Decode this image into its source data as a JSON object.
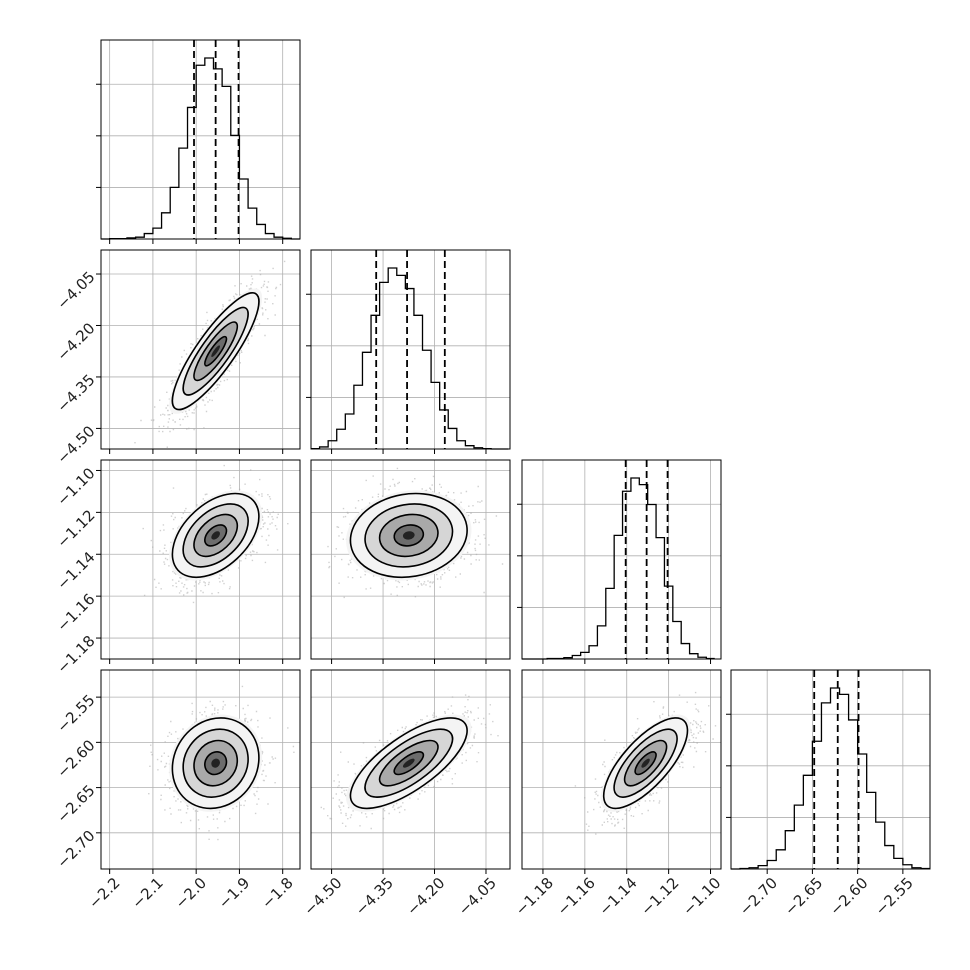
{
  "chart_data": {
    "type": "corner",
    "parameters": [
      {
        "range": [
          -2.22,
          -1.76
        ],
        "ticks": [
          -2.2,
          -2.1,
          -2.0,
          -1.9,
          -1.8
        ],
        "tick_labels": [
          "−2.2",
          "−2.1",
          "−2.0",
          "−1.9",
          "−1.8"
        ],
        "quantiles": [
          -2.005,
          -1.955,
          -1.902
        ],
        "hist_bins": [
          -2.22,
          -2.2,
          -2.18,
          -2.16,
          -2.14,
          -2.12,
          -2.1,
          -2.08,
          -2.06,
          -2.04,
          -2.02,
          -2.0,
          -1.98,
          -1.96,
          -1.94,
          -1.92,
          -1.9,
          -1.88,
          -1.86,
          -1.84,
          -1.82,
          -1.8,
          -1.78,
          -1.76
        ],
        "hist_counts": [
          0,
          1,
          1,
          3,
          5,
          15,
          30,
          72,
          142,
          250,
          362,
          478,
          498,
          468,
          420,
          285,
          165,
          85,
          40,
          15,
          5,
          2,
          0
        ]
      },
      {
        "range": [
          -4.56,
          -3.98
        ],
        "ticks": [
          -4.5,
          -4.35,
          -4.2,
          -4.05
        ],
        "tick_labels": [
          "−4.50",
          "−4.35",
          "−4.20",
          "−4.05"
        ],
        "quantiles": [
          -4.37,
          -4.28,
          -4.17
        ],
        "hist_bins": [
          -4.56,
          -4.535,
          -4.51,
          -4.485,
          -4.46,
          -4.435,
          -4.41,
          -4.385,
          -4.36,
          -4.335,
          -4.31,
          -4.285,
          -4.26,
          -4.235,
          -4.21,
          -4.185,
          -4.16,
          -4.135,
          -4.11,
          -4.085,
          -4.06,
          -4.035,
          -4.01,
          -3.985
        ],
        "hist_counts": [
          1,
          5,
          20,
          48,
          85,
          155,
          235,
          325,
          405,
          440,
          422,
          390,
          325,
          240,
          162,
          95,
          50,
          20,
          8,
          3,
          1,
          0,
          0
        ]
      },
      {
        "range": [
          -1.19,
          -1.095
        ],
        "ticks": [
          -1.18,
          -1.16,
          -1.14,
          -1.12,
          -1.1
        ],
        "tick_labels": [
          "−1.18",
          "−1.16",
          "−1.14",
          "−1.12",
          "−1.10"
        ],
        "quantiles": [
          -1.1405,
          -1.1305,
          -1.1205
        ],
        "hist_bins": [
          -1.19,
          -1.186,
          -1.182,
          -1.178,
          -1.174,
          -1.17,
          -1.166,
          -1.162,
          -1.158,
          -1.154,
          -1.15,
          -1.146,
          -1.142,
          -1.138,
          -1.134,
          -1.13,
          -1.126,
          -1.122,
          -1.118,
          -1.114,
          -1.11,
          -1.106,
          -1.102,
          -1.098
        ],
        "hist_counts": [
          0,
          0,
          0,
          1,
          1,
          3,
          8,
          15,
          30,
          75,
          160,
          280,
          380,
          410,
          395,
          350,
          275,
          165,
          85,
          35,
          12,
          4,
          1
        ]
      },
      {
        "range": [
          -2.74,
          -2.52
        ],
        "ticks": [
          -2.7,
          -2.65,
          -2.6,
          -2.55
        ],
        "tick_labels": [
          "−2.70",
          "−2.65",
          "−2.60",
          "−2.55"
        ],
        "quantiles": [
          -2.648,
          -2.622,
          -2.599
        ],
        "hist_bins": [
          -2.74,
          -2.73,
          -2.72,
          -2.71,
          -2.7,
          -2.69,
          -2.68,
          -2.67,
          -2.66,
          -2.65,
          -2.64,
          -2.63,
          -2.62,
          -2.61,
          -2.6,
          -2.59,
          -2.58,
          -2.57,
          -2.56,
          -2.55,
          -2.54,
          -2.53,
          -2.52
        ],
        "hist_counts": [
          0,
          1,
          3,
          8,
          20,
          45,
          90,
          150,
          220,
          300,
          390,
          425,
          410,
          350,
          270,
          180,
          110,
          55,
          25,
          10,
          3,
          1
        ]
      }
    ],
    "pairs": [
      {
        "x_param": 0,
        "y_param": 1,
        "center": [
          -1.955,
          -4.275
        ],
        "sd": [
          0.05,
          0.085
        ],
        "corr": 0.85
      },
      {
        "x_param": 0,
        "y_param": 2,
        "center": [
          -1.955,
          -1.131
        ],
        "sd": [
          0.05,
          0.01
        ],
        "corr": 0.45
      },
      {
        "x_param": 1,
        "y_param": 2,
        "center": [
          -4.275,
          -1.131
        ],
        "sd": [
          0.085,
          0.01
        ],
        "corr": 0.12
      },
      {
        "x_param": 0,
        "y_param": 3,
        "center": [
          -1.955,
          -2.623
        ],
        "sd": [
          0.05,
          0.025
        ],
        "corr": 0.12
      },
      {
        "x_param": 1,
        "y_param": 3,
        "center": [
          -4.275,
          -2.623
        ],
        "sd": [
          0.085,
          0.025
        ],
        "corr": 0.72
      },
      {
        "x_param": 2,
        "y_param": 3,
        "center": [
          -1.131,
          -2.623
        ],
        "sd": [
          0.01,
          0.025
        ],
        "corr": 0.72
      }
    ],
    "contour_levels_sigma": [
      0.5,
      1.0,
      1.5,
      2.0
    ],
    "grid": true,
    "title": "",
    "xlabel": "",
    "ylabel": ""
  }
}
